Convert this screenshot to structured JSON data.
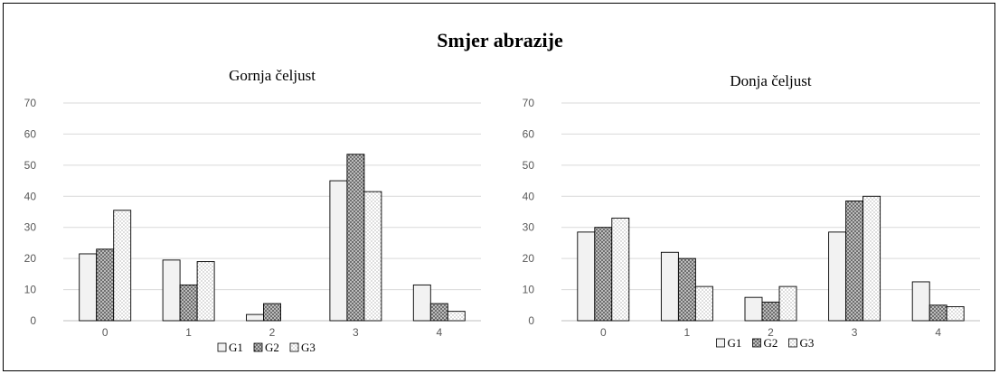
{
  "chart_data": {
    "title": "Smjer abrazije",
    "type": "bar",
    "charts": [
      {
        "type": "bar",
        "title": "Gornja čeljust",
        "categories": [
          "0",
          "1",
          "2",
          "3",
          "4"
        ],
        "ylim": [
          0,
          70
        ],
        "yticks": [
          "0",
          "10",
          "20",
          "30",
          "40",
          "50",
          "60",
          "70"
        ],
        "grid": true,
        "legend": "bottom",
        "series": [
          {
            "name": "G1",
            "values": [
              21.5,
              19.5,
              2,
              45,
              11.5
            ]
          },
          {
            "name": "G2",
            "values": [
              23,
              11.5,
              5.5,
              53.5,
              5.5
            ]
          },
          {
            "name": "G3",
            "values": [
              35.5,
              19,
              0,
              41.5,
              3
            ]
          }
        ]
      },
      {
        "type": "bar",
        "title": "Donja čeljust",
        "categories": [
          "0",
          "1",
          "2",
          "3",
          "4"
        ],
        "ylim": [
          0,
          70
        ],
        "yticks": [
          "0",
          "10",
          "20",
          "30",
          "40",
          "50",
          "60",
          "70"
        ],
        "grid": true,
        "legend": "bottom",
        "series": [
          {
            "name": "G1",
            "values": [
              28.5,
              22,
              7.5,
              28.5,
              12.5
            ]
          },
          {
            "name": "G2",
            "values": [
              30,
              20,
              6,
              38.5,
              5
            ]
          },
          {
            "name": "G3",
            "values": [
              33,
              11,
              11,
              40,
              4.5
            ]
          }
        ]
      }
    ]
  }
}
